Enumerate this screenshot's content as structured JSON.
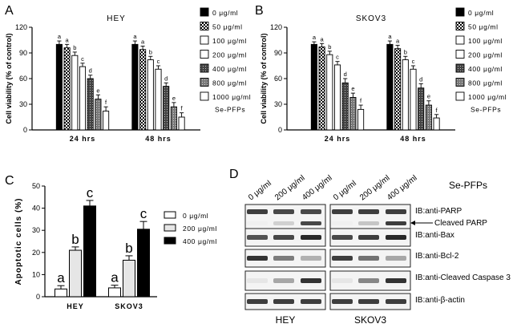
{
  "panels": {
    "A": {
      "letter": "A"
    },
    "B": {
      "letter": "B"
    },
    "C": {
      "letter": "C"
    },
    "D": {
      "letter": "D"
    }
  },
  "chart_data": [
    {
      "id": "A",
      "type": "bar",
      "title": "HEY",
      "ylabel": "Cell viability (% of control)",
      "xlabel": "",
      "ylim": [
        0,
        120
      ],
      "yticks": [
        "0",
        "30",
        "60",
        "90",
        "120"
      ],
      "categories": [
        "24 hrs",
        "48 hrs"
      ],
      "series": [
        {
          "name": "0 μg/ml",
          "values": [
            100,
            100
          ],
          "errors": [
            4,
            4
          ],
          "labels": [
            "a",
            "a"
          ]
        },
        {
          "name": "50 μg/ml",
          "values": [
            96,
            94
          ],
          "errors": [
            4,
            4
          ],
          "labels": [
            "a",
            "a"
          ]
        },
        {
          "name": "100 μg/ml",
          "values": [
            87,
            82
          ],
          "errors": [
            4,
            4
          ],
          "labels": [
            "b",
            "b"
          ]
        },
        {
          "name": "200 μg/ml",
          "values": [
            74,
            71
          ],
          "errors": [
            4,
            4
          ],
          "labels": [
            "c",
            "c"
          ]
        },
        {
          "name": "400 μg/ml",
          "values": [
            60,
            51
          ],
          "errors": [
            4,
            4
          ],
          "labels": [
            "d",
            "d"
          ]
        },
        {
          "name": "800 μg/ml",
          "values": [
            36,
            27
          ],
          "errors": [
            5,
            5
          ],
          "labels": [
            "e",
            "e"
          ]
        },
        {
          "name": "1000 μg/ml",
          "values": [
            22,
            15
          ],
          "errors": [
            5,
            5
          ],
          "labels": [
            "f",
            "f"
          ]
        }
      ],
      "legend_title": "Se-PFPs"
    },
    {
      "id": "B",
      "type": "bar",
      "title": "SKOV3",
      "ylabel": "Cell viability (% of control)",
      "xlabel": "",
      "ylim": [
        0,
        120
      ],
      "yticks": [
        "0",
        "30",
        "60",
        "90",
        "120"
      ],
      "categories": [
        "24 hrs",
        "48 hrs"
      ],
      "series": [
        {
          "name": "0 μg/ml",
          "values": [
            100,
            100
          ],
          "errors": [
            3,
            4
          ],
          "labels": [
            "a",
            "a"
          ]
        },
        {
          "name": "50 μg/ml",
          "values": [
            97,
            95
          ],
          "errors": [
            4,
            4
          ],
          "labels": [
            "a",
            "a"
          ]
        },
        {
          "name": "100 μg/ml",
          "values": [
            88,
            82
          ],
          "errors": [
            4,
            4
          ],
          "labels": [
            "b",
            "b"
          ]
        },
        {
          "name": "200 μg/ml",
          "values": [
            76,
            71
          ],
          "errors": [
            4,
            4
          ],
          "labels": [
            "c",
            "c"
          ]
        },
        {
          "name": "400 μg/ml",
          "values": [
            55,
            49
          ],
          "errors": [
            5,
            5
          ],
          "labels": [
            "d",
            "d"
          ]
        },
        {
          "name": "800 μg/ml",
          "values": [
            38,
            29
          ],
          "errors": [
            5,
            5
          ],
          "labels": [
            "e",
            "e"
          ]
        },
        {
          "name": "1000 μg/ml",
          "values": [
            24,
            14
          ],
          "errors": [
            5,
            4
          ],
          "labels": [
            "f",
            "f"
          ]
        }
      ],
      "legend_title": "Se-PFPs"
    },
    {
      "id": "C",
      "type": "bar",
      "title": "",
      "ylabel": "Apoptotic cells (%)",
      "xlabel": "",
      "ylim": [
        0,
        50
      ],
      "yticks": [
        "0",
        "10",
        "20",
        "30",
        "40",
        "50"
      ],
      "categories": [
        "HEY",
        "SKOV3"
      ],
      "series": [
        {
          "name": "0 μg/ml",
          "values": [
            3.5,
            4
          ],
          "errors": [
            1.5,
            1.2
          ],
          "labels": [
            "a",
            "a"
          ]
        },
        {
          "name": "200 μg/ml",
          "values": [
            21,
            16.5
          ],
          "errors": [
            1.5,
            2
          ],
          "labels": [
            "b",
            "b"
          ]
        },
        {
          "name": "400 μg/ml",
          "values": [
            41,
            30.5
          ],
          "errors": [
            2.5,
            3.5
          ],
          "labels": [
            "c",
            "c"
          ]
        }
      ]
    }
  ],
  "blot": {
    "se_pfps_label": "Se-PFPs",
    "lanes": [
      "0 μg/ml",
      "200 μg/ml",
      "400 μg/ml",
      "0 μg/ml",
      "200 μg/ml",
      "400 μg/ml"
    ],
    "cell_lines": [
      "HEY",
      "SKOV3"
    ],
    "rows": [
      {
        "label": "IB:anti-PARP",
        "extra": "Cleaved PARP",
        "bands": [
          0.85,
          0.8,
          0.8,
          0.85,
          0.85,
          0.85
        ],
        "cleaved": [
          0.0,
          0.15,
          0.8,
          0.0,
          0.2,
          0.85
        ]
      },
      {
        "label": "IB:anti-Bax",
        "bands": [
          0.75,
          0.8,
          0.95,
          0.8,
          0.85,
          0.95
        ]
      },
      {
        "label": "IB:anti-Bcl-2",
        "bands": [
          0.9,
          0.55,
          0.3,
          0.85,
          0.6,
          0.35
        ]
      },
      {
        "label": "IB:anti-Cleaved Caspase 3",
        "bands": [
          0.05,
          0.35,
          0.9,
          0.05,
          0.5,
          0.9
        ]
      },
      {
        "label": "IB:anti-β-actin",
        "bands": [
          0.85,
          0.85,
          0.85,
          0.85,
          0.85,
          0.85
        ]
      }
    ]
  }
}
